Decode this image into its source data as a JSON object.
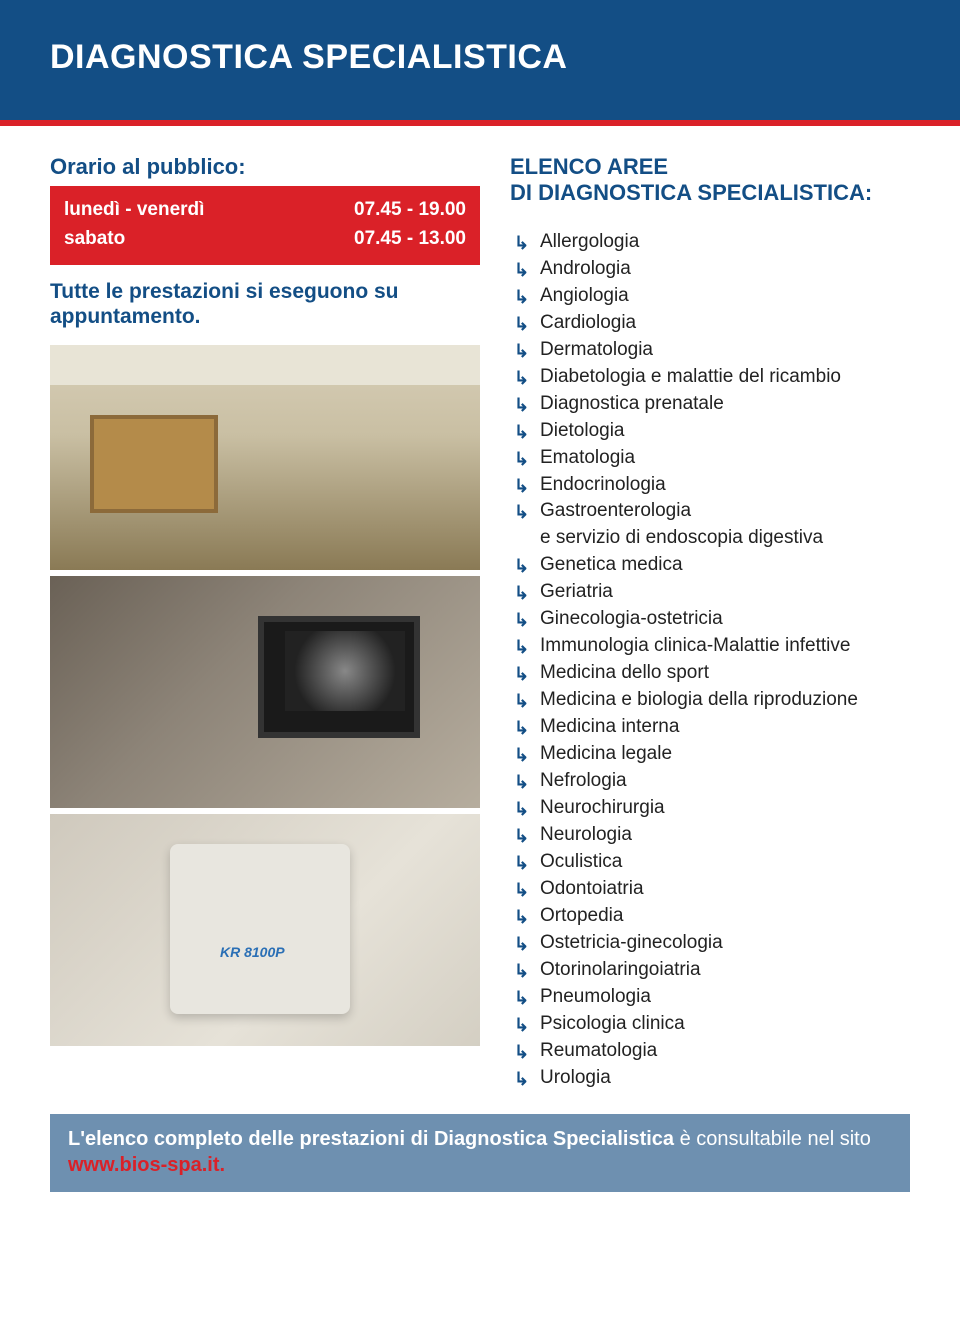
{
  "colors": {
    "header_bg": "#134e85",
    "accent_red": "#da2128",
    "text_blue": "#134e85",
    "body_text": "#222222",
    "footer_bg": "#6e90b0",
    "footer_text": "#ffffff",
    "page_bg": "#ffffff"
  },
  "header": {
    "title": "DIAGNOSTICA SPECIALISTICA"
  },
  "hours": {
    "heading": "Orario al pubblico:",
    "rows": [
      {
        "days": "lunedì - venerdì",
        "time": "07.45 - 19.00"
      },
      {
        "days": "sabato",
        "time": "07.45 - 13.00"
      }
    ]
  },
  "note": "Tutte le prestazioni si eseguono su appuntamento.",
  "areas": {
    "heading_line1": "ELENCO AREE",
    "heading_line2": "DI DIAGNOSTICA SPECIALISTICA:",
    "items": [
      {
        "label": "Allergologia"
      },
      {
        "label": "Andrologia"
      },
      {
        "label": "Angiologia"
      },
      {
        "label": "Cardiologia"
      },
      {
        "label": "Dermatologia"
      },
      {
        "label": "Diabetologia e malattie del ricambio"
      },
      {
        "label": "Diagnostica prenatale"
      },
      {
        "label": "Dietologia"
      },
      {
        "label": "Ematologia"
      },
      {
        "label": "Endocrinologia"
      },
      {
        "label": "Gastroenterologia",
        "sub": "e servizio di endoscopia digestiva"
      },
      {
        "label": "Genetica medica"
      },
      {
        "label": "Geriatria"
      },
      {
        "label": "Ginecologia-ostetricia"
      },
      {
        "label": "Immunologia clinica-Malattie infettive"
      },
      {
        "label": "Medicina dello sport"
      },
      {
        "label": "Medicina e biologia della riproduzione"
      },
      {
        "label": "Medicina interna"
      },
      {
        "label": "Medicina legale"
      },
      {
        "label": "Nefrologia"
      },
      {
        "label": "Neurochirurgia"
      },
      {
        "label": "Neurologia"
      },
      {
        "label": "Oculistica"
      },
      {
        "label": "Odontoiatria"
      },
      {
        "label": "Ortopedia"
      },
      {
        "label": "Ostetricia-ginecologia"
      },
      {
        "label": "Otorinolaringoiatria"
      },
      {
        "label": "Pneumologia"
      },
      {
        "label": "Psicologia clinica"
      },
      {
        "label": "Reumatologia"
      },
      {
        "label": "Urologia"
      }
    ]
  },
  "footer": {
    "bold": "L'elenco completo delle prestazioni di Diagnostica Specialistica",
    "rest": " è consultabile nel sito ",
    "link": "www.bios-spa.it."
  }
}
